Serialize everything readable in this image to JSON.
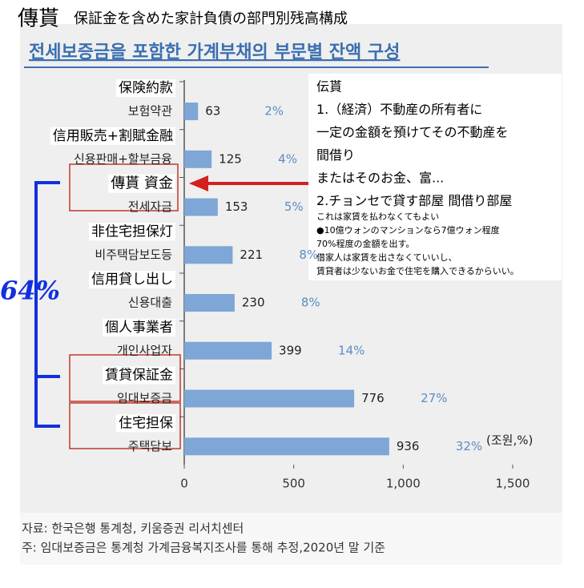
{
  "chart_data": {
    "type": "barh",
    "title_emphasis": "傳貰",
    "title": "保証金を含めた家計負債の部門別残高構成",
    "subtitle": "전세보증금을 포함한 가계부채의 부문별 잔액 구성",
    "categories": [
      "보험약관",
      "신용판매+할부금융",
      "전세자금",
      "비주택담보도등",
      "신용대출",
      "개인사업자",
      "임대보증금",
      "주택담보"
    ],
    "category_notes": [
      "保険約款",
      "信用販売+割賦金融",
      "傳貰 資金",
      "非住宅担保灯",
      "信用貸し出し",
      "個人事業者",
      "賃貸保証金",
      "住宅担保"
    ],
    "values": [
      63,
      125,
      153,
      221,
      230,
      399,
      776,
      936
    ],
    "share_labels": [
      "2%",
      "4%",
      "5%",
      "8%",
      "8%",
      "14%",
      "27%",
      "32%"
    ],
    "color": "#7ea6d6",
    "unit": "(조원,%)",
    "xlim": [
      0,
      1500
    ],
    "xticks": [
      0,
      500,
      {
        "value": 1000,
        "label": "1,000"
      },
      {
        "value": 1500,
        "label": "1,500"
      }
    ],
    "bracket_label": "64%",
    "annotation": [
      "伝貰",
      "1.（経済）不動産の所有者に",
      "一定の金額を預けてその不動産を",
      "間借り",
      "またはそのお金、富...",
      "2.チョンセで貸す部屋 間借り部屋"
    ],
    "annotation_notes": [
      "これは家賃を払わなくてもよい",
      "●10億ウォンのマンションなら7億ウォン程度",
      "70%程度の金額を出す。",
      "借家人は家賃を出さなくていいし、",
      "賃貸者は少ないお金で住宅を購入できるからいい。"
    ],
    "sources": [
      "자료: 한국은행 통계청, 키움증권 리서치센터",
      "주: 임대보증금은 통계청 가계금융복지조사를 통해 추정,2020년 말 기준"
    ]
  }
}
